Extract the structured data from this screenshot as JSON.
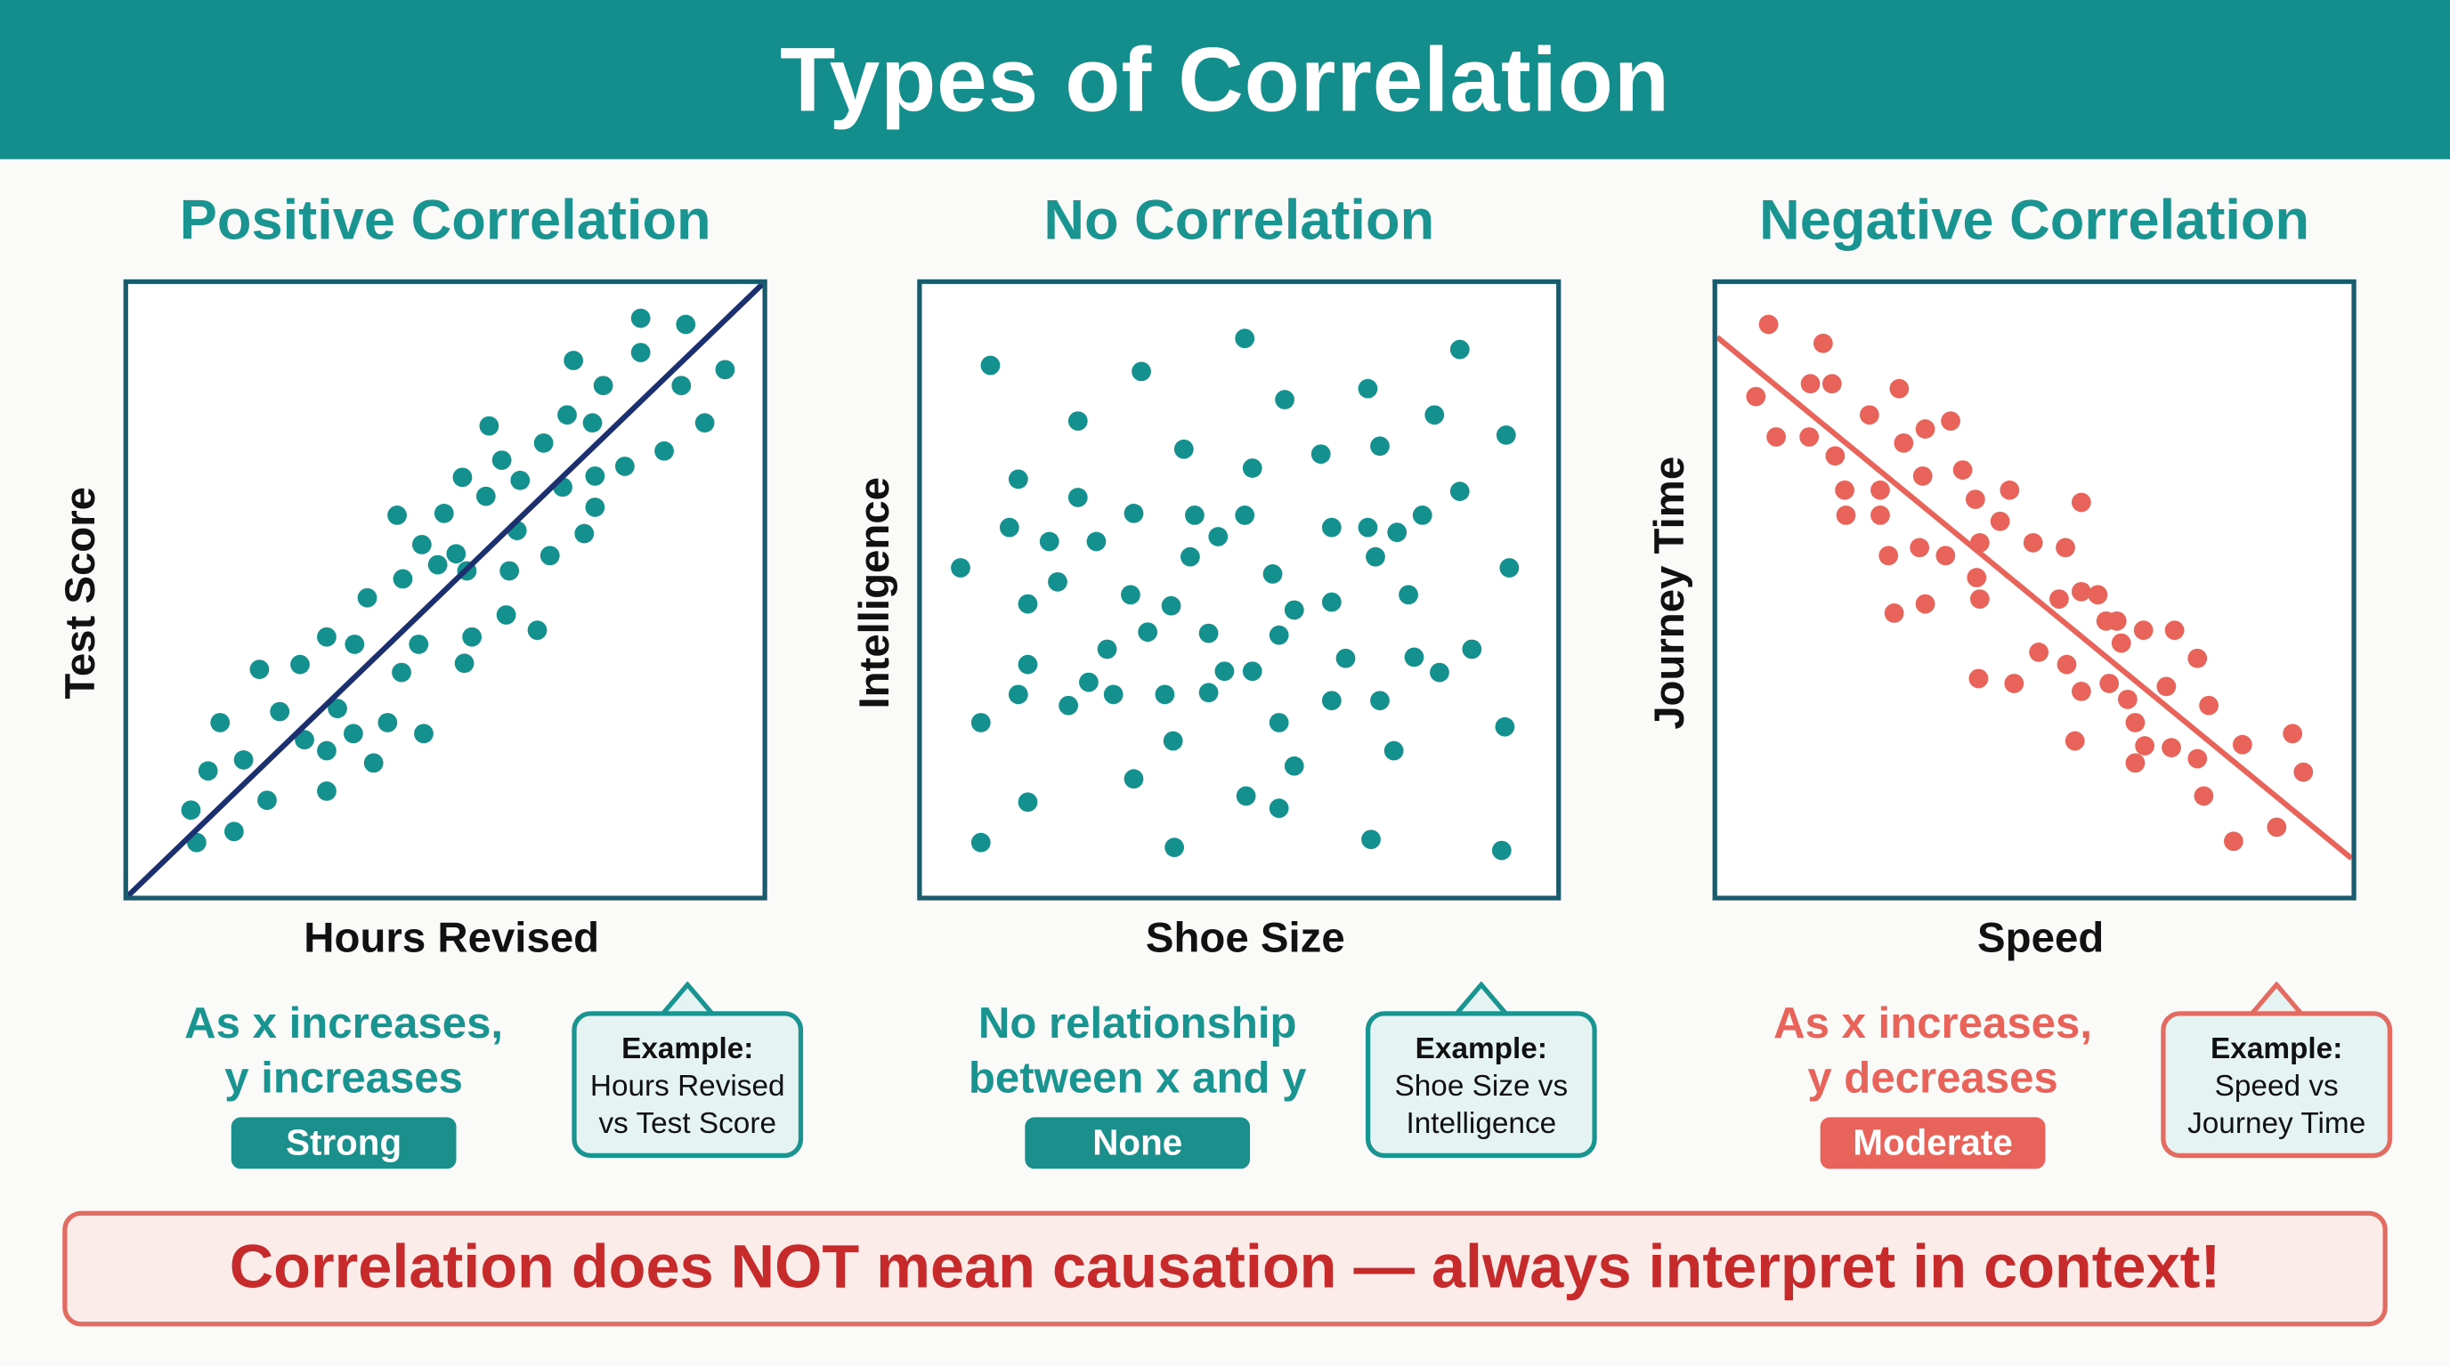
{
  "title": "Types of Correlation",
  "colors": {
    "teal": "#138e8c",
    "dot_teal": "#14918f",
    "navy": "#1c2f6e",
    "coral": "#e8645a",
    "red_text": "#c62a2a"
  },
  "panels": [
    {
      "title": "Positive Correlation",
      "xlabel": "Hours Revised",
      "ylabel": "Test Score",
      "statement_line1": "As x increases,",
      "statement_line2": "y increases",
      "strength": "Strong",
      "example_label": "Example:",
      "example_line1": "Hours Revised",
      "example_line2": "vs Test Score"
    },
    {
      "title": "No Correlation",
      "xlabel": "Shoe Size",
      "ylabel": "Intelligence",
      "statement_line1": "No relationship",
      "statement_line2": "between x and y",
      "strength": "None",
      "example_label": "Example:",
      "example_line1": "Shoe Size vs",
      "example_line2": "Intelligence"
    },
    {
      "title": "Negative Correlation",
      "xlabel": "Speed",
      "ylabel": "Journey Time",
      "statement_line1": "As x increases,",
      "statement_line2": "y decreases",
      "strength": "Moderate",
      "example_label": "Example:",
      "example_line1": "Speed vs",
      "example_line2": "Journey Time"
    }
  ],
  "footer": "Correlation does NOT mean causation — always interpret in context!",
  "chart_data": [
    {
      "type": "scatter",
      "title": "Positive Correlation",
      "xlabel": "Hours Revised",
      "ylabel": "Test Score",
      "xlim": [
        0,
        100
      ],
      "ylim": [
        0,
        100
      ],
      "grid": false,
      "dot_color": "#14918f",
      "trend_color": "#1c2f6e",
      "trend": [
        [
          0,
          0
        ],
        [
          100,
          100
        ]
      ],
      "points": [
        [
          10.8,
          8.7
        ],
        [
          9.9,
          14.0
        ],
        [
          16.7,
          10.5
        ],
        [
          12.6,
          20.4
        ],
        [
          14.5,
          28.3
        ],
        [
          18.2,
          22.2
        ],
        [
          21.9,
          15.6
        ],
        [
          20.7,
          37.0
        ],
        [
          23.9,
          30.1
        ],
        [
          27.1,
          37.8
        ],
        [
          27.8,
          25.5
        ],
        [
          31.3,
          42.3
        ],
        [
          31.3,
          23.7
        ],
        [
          31.3,
          17.1
        ],
        [
          33.0,
          30.6
        ],
        [
          35.7,
          41.1
        ],
        [
          35.5,
          26.5
        ],
        [
          38.7,
          21.7
        ],
        [
          37.7,
          48.7
        ],
        [
          40.9,
          28.3
        ],
        [
          43.1,
          36.5
        ],
        [
          45.8,
          41.1
        ],
        [
          42.4,
          62.2
        ],
        [
          43.3,
          51.8
        ],
        [
          46.3,
          57.4
        ],
        [
          46.6,
          26.5
        ],
        [
          49.8,
          62.5
        ],
        [
          48.8,
          54.1
        ],
        [
          51.7,
          55.9
        ],
        [
          53.4,
          53.1
        ],
        [
          52.7,
          68.4
        ],
        [
          54.2,
          42.3
        ],
        [
          53.0,
          38.0
        ],
        [
          56.9,
          76.8
        ],
        [
          58.9,
          71.2
        ],
        [
          56.4,
          65.3
        ],
        [
          60.1,
          53.1
        ],
        [
          59.6,
          45.9
        ],
        [
          61.3,
          59.7
        ],
        [
          64.5,
          43.4
        ],
        [
          65.5,
          74.0
        ],
        [
          66.5,
          55.6
        ],
        [
          69.2,
          78.6
        ],
        [
          68.5,
          66.8
        ],
        [
          70.2,
          87.5
        ],
        [
          73.2,
          77.3
        ],
        [
          73.6,
          68.6
        ],
        [
          73.6,
          63.5
        ],
        [
          71.9,
          59.2
        ],
        [
          74.9,
          83.4
        ],
        [
          78.3,
          70.2
        ],
        [
          80.8,
          94.4
        ],
        [
          80.8,
          88.8
        ],
        [
          84.5,
          72.7
        ],
        [
          87.9,
          93.4
        ],
        [
          87.2,
          83.4
        ],
        [
          90.9,
          77.3
        ],
        [
          94.1,
          86.0
        ],
        [
          61.8,
          67.9
        ]
      ]
    },
    {
      "type": "scatter",
      "title": "No Correlation",
      "xlabel": "Shoe Size",
      "ylabel": "Intelligence",
      "xlim": [
        0,
        100
      ],
      "ylim": [
        0,
        100
      ],
      "grid": false,
      "dot_color": "#14918f",
      "trend": null,
      "points": [
        [
          10.8,
          86.7
        ],
        [
          34.6,
          85.7
        ],
        [
          50.9,
          91.1
        ],
        [
          84.8,
          89.3
        ],
        [
          24.6,
          77.6
        ],
        [
          57.2,
          81.1
        ],
        [
          70.3,
          82.9
        ],
        [
          80.8,
          78.6
        ],
        [
          92.1,
          75.3
        ],
        [
          41.3,
          73.0
        ],
        [
          52.1,
          69.9
        ],
        [
          62.9,
          72.2
        ],
        [
          72.2,
          73.5
        ],
        [
          15.2,
          68.1
        ],
        [
          24.6,
          65.1
        ],
        [
          33.4,
          62.5
        ],
        [
          43.0,
          62.2
        ],
        [
          50.9,
          62.2
        ],
        [
          46.7,
          58.7
        ],
        [
          64.6,
          60.2
        ],
        [
          70.3,
          60.2
        ],
        [
          74.9,
          59.4
        ],
        [
          78.9,
          62.2
        ],
        [
          84.8,
          66.1
        ],
        [
          13.8,
          60.2
        ],
        [
          20.1,
          57.9
        ],
        [
          27.5,
          57.9
        ],
        [
          42.3,
          55.4
        ],
        [
          71.5,
          55.4
        ],
        [
          6.1,
          53.6
        ],
        [
          92.6,
          53.6
        ],
        [
          21.4,
          51.3
        ],
        [
          32.9,
          49.2
        ],
        [
          16.7,
          47.7
        ],
        [
          39.3,
          47.4
        ],
        [
          55.3,
          52.6
        ],
        [
          58.7,
          46.7
        ],
        [
          64.6,
          48.0
        ],
        [
          76.7,
          49.2
        ],
        [
          35.6,
          43.1
        ],
        [
          45.2,
          42.9
        ],
        [
          56.3,
          42.6
        ],
        [
          29.2,
          40.3
        ],
        [
          16.7,
          37.8
        ],
        [
          66.8,
          38.8
        ],
        [
          77.6,
          39.0
        ],
        [
          86.7,
          40.3
        ],
        [
          26.3,
          34.9
        ],
        [
          47.7,
          36.7
        ],
        [
          52.1,
          36.7
        ],
        [
          81.6,
          36.5
        ],
        [
          15.2,
          32.9
        ],
        [
          23.1,
          31.1
        ],
        [
          30.2,
          32.9
        ],
        [
          38.3,
          32.9
        ],
        [
          45.2,
          33.2
        ],
        [
          64.6,
          31.9
        ],
        [
          72.2,
          31.9
        ],
        [
          9.3,
          28.3
        ],
        [
          56.3,
          28.3
        ],
        [
          91.9,
          27.6
        ],
        [
          39.6,
          25.3
        ],
        [
          74.4,
          23.7
        ],
        [
          58.7,
          21.2
        ],
        [
          33.4,
          19.1
        ],
        [
          16.7,
          15.3
        ],
        [
          51.1,
          16.3
        ],
        [
          56.3,
          14.3
        ],
        [
          9.3,
          8.7
        ],
        [
          39.8,
          7.9
        ],
        [
          70.8,
          9.2
        ],
        [
          91.4,
          7.4
        ]
      ]
    },
    {
      "type": "scatter",
      "title": "Negative Correlation",
      "xlabel": "Speed",
      "ylabel": "Journey Time",
      "xlim": [
        0,
        100
      ],
      "ylim": [
        0,
        100
      ],
      "grid": false,
      "dot_color": "#e8645a",
      "trend_color": "#e8645a",
      "trend": [
        [
          0,
          91.3
        ],
        [
          100,
          6.1
        ]
      ],
      "points": [
        [
          8.1,
          93.4
        ],
        [
          16.7,
          90.3
        ],
        [
          6.1,
          81.6
        ],
        [
          14.7,
          83.7
        ],
        [
          18.1,
          83.7
        ],
        [
          28.7,
          82.9
        ],
        [
          9.3,
          75.0
        ],
        [
          14.5,
          75.0
        ],
        [
          18.6,
          71.9
        ],
        [
          24.0,
          78.6
        ],
        [
          32.8,
          76.3
        ],
        [
          36.8,
          77.6
        ],
        [
          29.4,
          74.0
        ],
        [
          20.1,
          66.3
        ],
        [
          25.7,
          66.3
        ],
        [
          32.4,
          68.6
        ],
        [
          38.7,
          69.6
        ],
        [
          46.1,
          66.3
        ],
        [
          20.3,
          62.2
        ],
        [
          25.7,
          62.2
        ],
        [
          40.7,
          64.8
        ],
        [
          44.6,
          61.2
        ],
        [
          57.4,
          64.3
        ],
        [
          27.0,
          55.6
        ],
        [
          31.9,
          56.9
        ],
        [
          36.0,
          55.6
        ],
        [
          41.4,
          57.7
        ],
        [
          49.8,
          57.7
        ],
        [
          54.9,
          56.9
        ],
        [
          27.9,
          46.2
        ],
        [
          32.8,
          47.7
        ],
        [
          40.9,
          52.0
        ],
        [
          41.4,
          48.5
        ],
        [
          53.9,
          48.5
        ],
        [
          57.4,
          49.7
        ],
        [
          60.0,
          49.2
        ],
        [
          61.3,
          44.9
        ],
        [
          63.0,
          44.9
        ],
        [
          63.7,
          41.3
        ],
        [
          67.2,
          43.4
        ],
        [
          72.1,
          43.4
        ],
        [
          50.7,
          39.8
        ],
        [
          55.1,
          37.8
        ],
        [
          41.2,
          35.5
        ],
        [
          46.8,
          34.7
        ],
        [
          57.4,
          33.4
        ],
        [
          61.8,
          34.7
        ],
        [
          64.7,
          32.1
        ],
        [
          70.8,
          34.2
        ],
        [
          75.7,
          38.8
        ],
        [
          77.5,
          31.1
        ],
        [
          56.4,
          25.3
        ],
        [
          65.9,
          28.3
        ],
        [
          67.4,
          24.5
        ],
        [
          71.6,
          24.2
        ],
        [
          65.9,
          21.7
        ],
        [
          75.7,
          22.4
        ],
        [
          82.8,
          24.7
        ],
        [
          90.7,
          26.5
        ],
        [
          92.4,
          20.2
        ],
        [
          76.7,
          16.3
        ],
        [
          81.4,
          8.9
        ],
        [
          88.2,
          11.2
        ]
      ]
    }
  ]
}
